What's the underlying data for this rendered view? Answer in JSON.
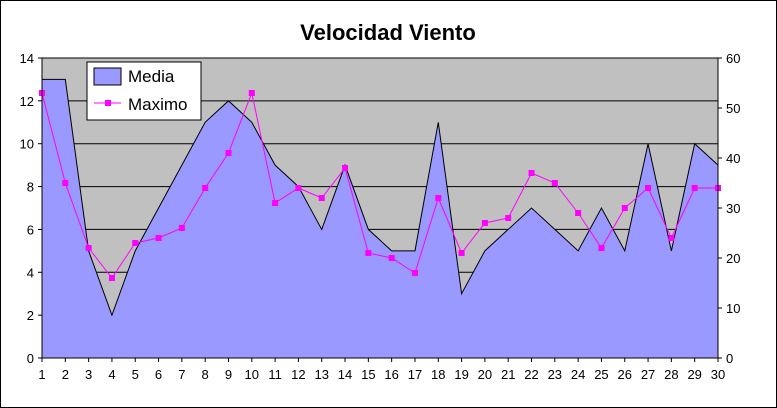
{
  "chart_data": {
    "type": "area",
    "title": "Velocidad Viento",
    "xlabel": "",
    "ylabel": "",
    "x": [
      1,
      2,
      3,
      4,
      5,
      6,
      7,
      8,
      9,
      10,
      11,
      12,
      13,
      14,
      15,
      16,
      17,
      18,
      19,
      20,
      21,
      22,
      23,
      24,
      25,
      26,
      27,
      28,
      29,
      30
    ],
    "ylim": [
      0,
      14
    ],
    "y2lim": [
      0,
      60
    ],
    "yticks": [
      0,
      2,
      4,
      6,
      8,
      10,
      12,
      14
    ],
    "y2ticks": [
      0,
      10,
      20,
      30,
      40,
      50,
      60
    ],
    "grid": true,
    "legend_position": "top-left",
    "series": [
      {
        "name": "Media",
        "kind": "area",
        "axis": "left",
        "color": "#9999ff",
        "values": [
          13,
          13,
          5,
          2,
          5,
          7,
          9,
          11,
          12,
          11,
          9,
          8,
          6,
          9,
          6,
          5,
          5,
          11,
          3,
          5,
          6,
          7,
          6,
          5,
          7,
          5,
          10,
          5,
          10,
          9
        ]
      },
      {
        "name": "Maximo",
        "kind": "line",
        "axis": "right",
        "color": "#ff00ff",
        "values": [
          53,
          35,
          22,
          16,
          23,
          24,
          26,
          34,
          41,
          53,
          31,
          34,
          32,
          38,
          21,
          20,
          17,
          32,
          21,
          27,
          28,
          37,
          35,
          29,
          22,
          30,
          34,
          24,
          34,
          34
        ]
      }
    ],
    "plot_background": "#c0c0c0",
    "outline_color": "#000000"
  }
}
